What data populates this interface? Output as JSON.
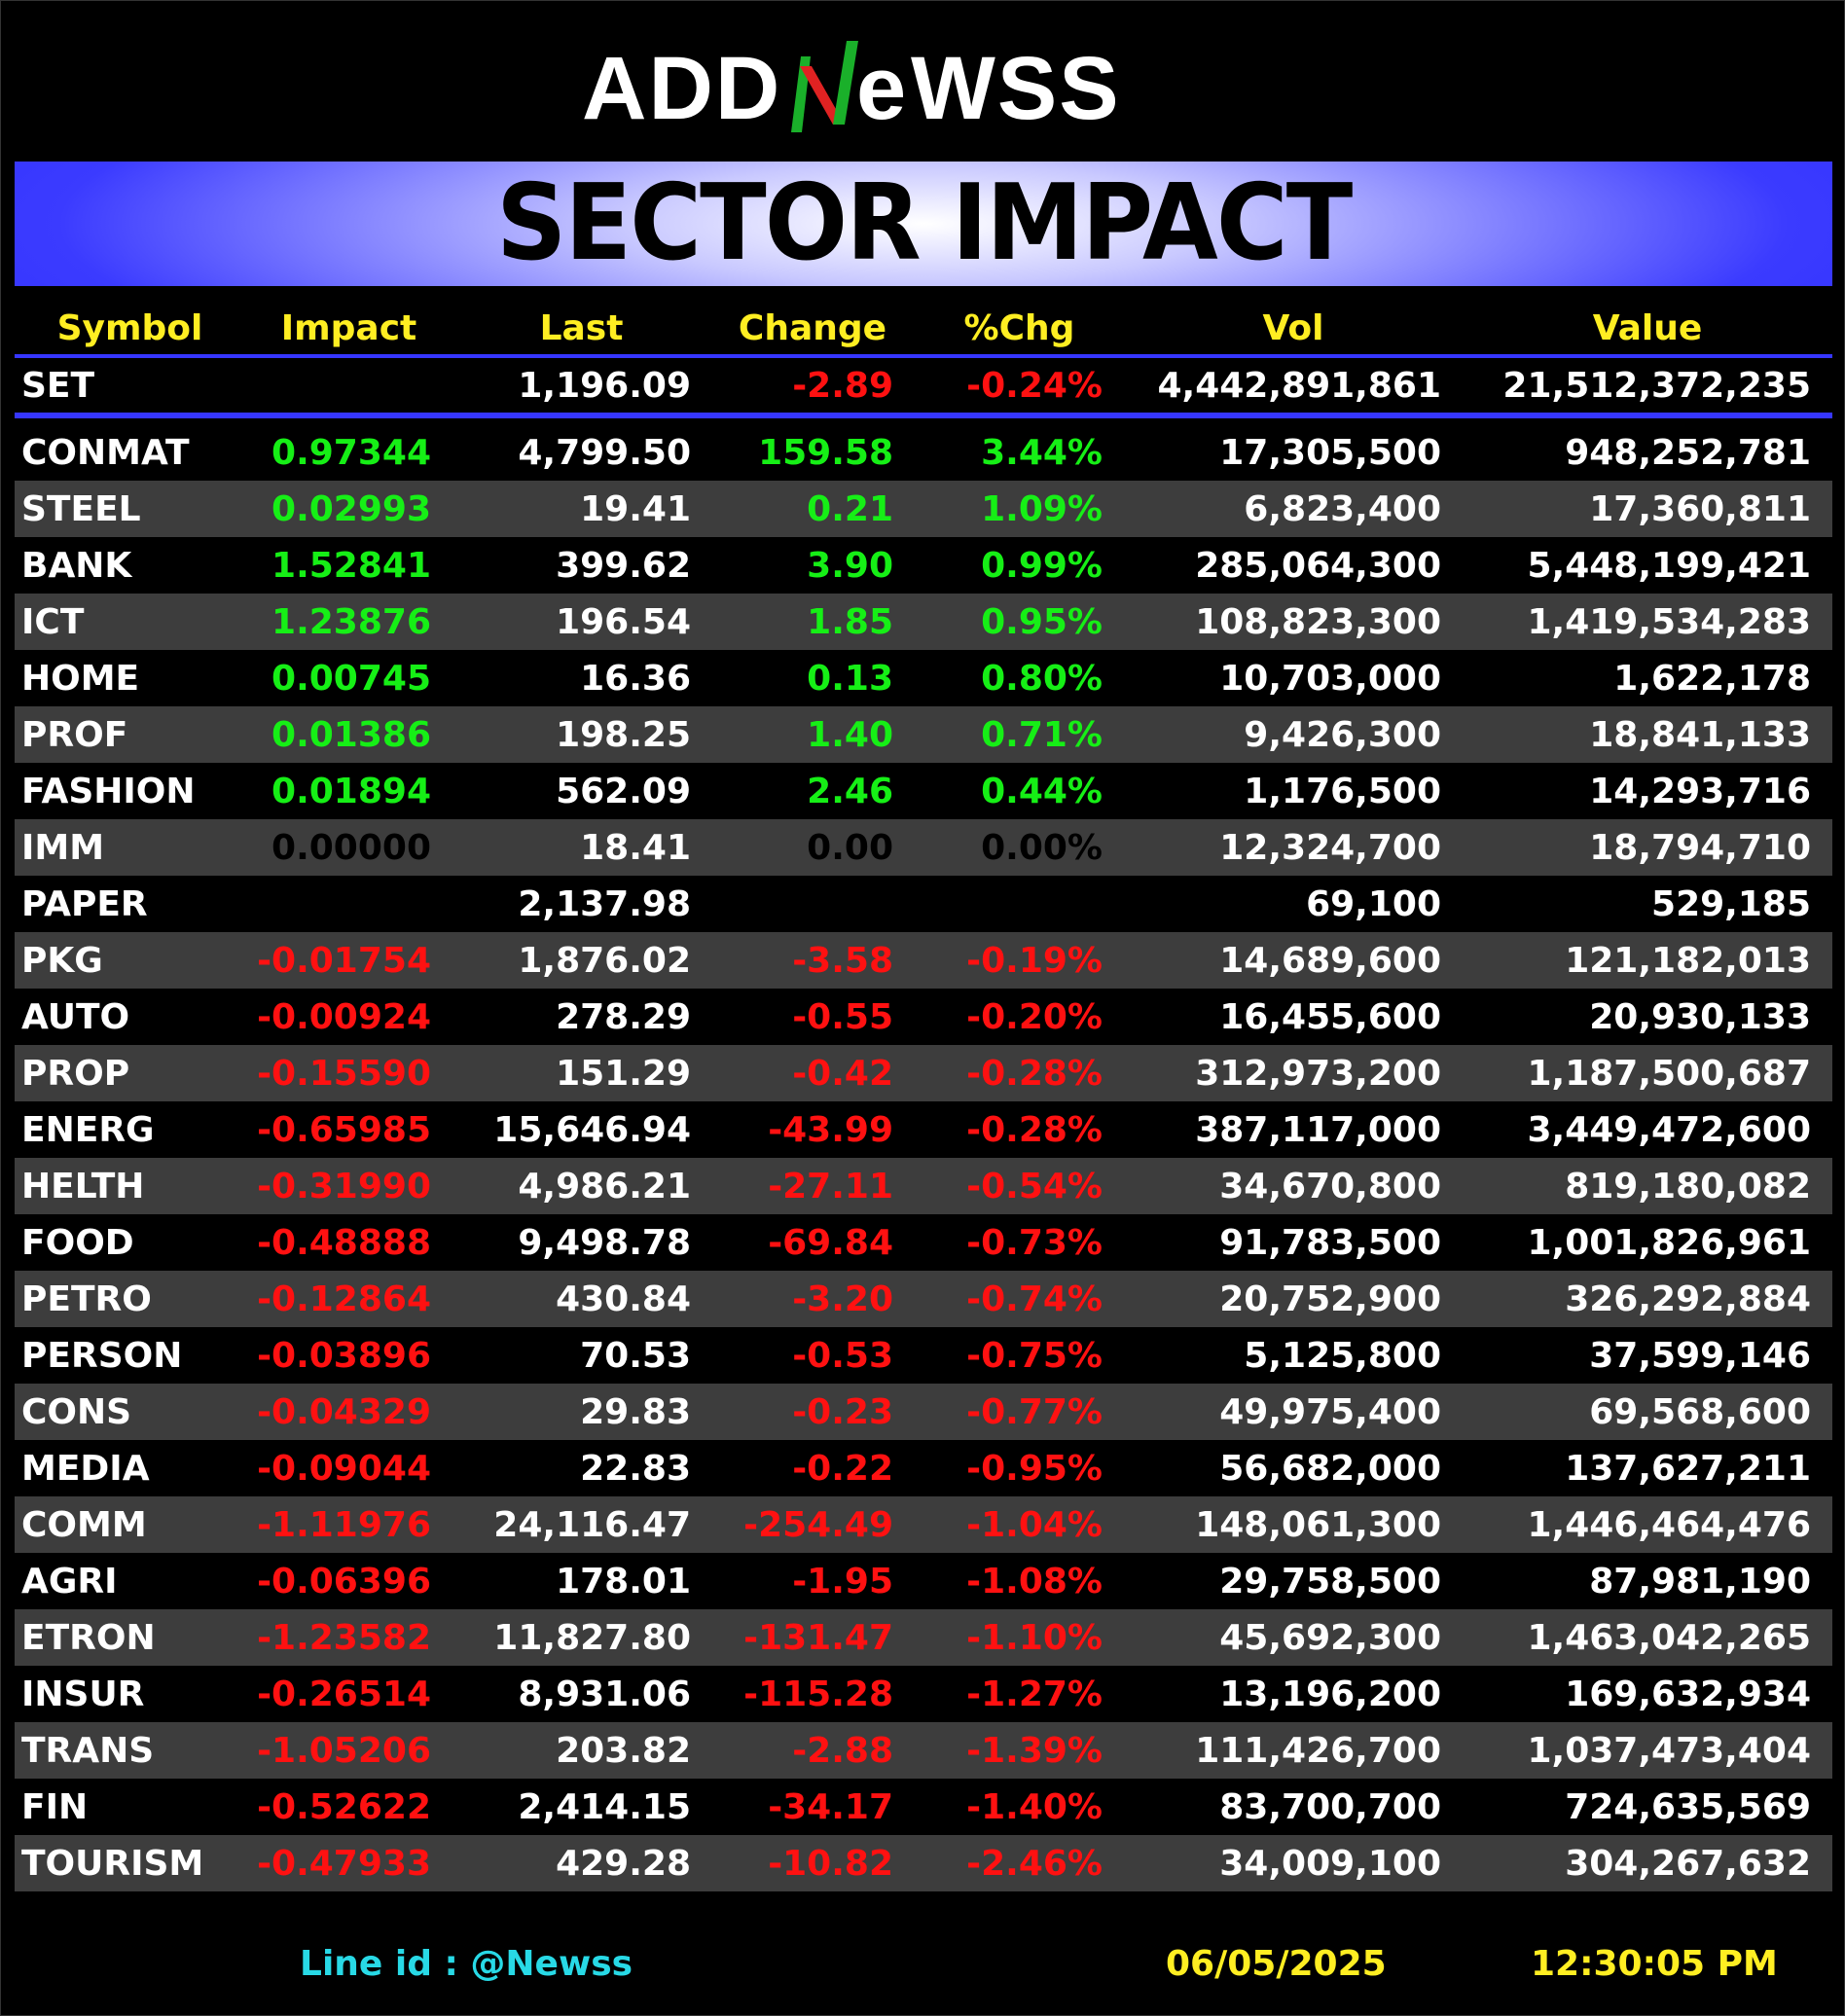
{
  "logo": {
    "text": "ADDNewss",
    "part1": "ADD",
    "part2": "e",
    "part3": "WSS"
  },
  "banner": {
    "title": "SECTOR IMPACT"
  },
  "headers": [
    "Symbol",
    "Impact",
    "Last",
    "Change",
    "%Chg",
    "Vol",
    "Value"
  ],
  "colors": {
    "positive": "#16ef16",
    "negative": "#ff1111",
    "header": "#ffee22",
    "accent": "#3636ff",
    "line_id": "#28d9e6"
  },
  "set_row": {
    "symbol": "SET",
    "impact": "",
    "last": "1,196.09",
    "change": "-2.89",
    "pct": "-0.24%",
    "vol": "4,442,891,861",
    "value": "21,512,372,235",
    "trend": "neg"
  },
  "rows": [
    {
      "symbol": "CONMAT",
      "impact": "0.97344",
      "last": "4,799.50",
      "change": "159.58",
      "pct": "3.44%",
      "vol": "17,305,500",
      "value": "948,252,781",
      "trend": "pos"
    },
    {
      "symbol": "STEEL",
      "impact": "0.02993",
      "last": "19.41",
      "change": "0.21",
      "pct": "1.09%",
      "vol": "6,823,400",
      "value": "17,360,811",
      "trend": "pos"
    },
    {
      "symbol": "BANK",
      "impact": "1.52841",
      "last": "399.62",
      "change": "3.90",
      "pct": "0.99%",
      "vol": "285,064,300",
      "value": "5,448,199,421",
      "trend": "pos"
    },
    {
      "symbol": "ICT",
      "impact": "1.23876",
      "last": "196.54",
      "change": "1.85",
      "pct": "0.95%",
      "vol": "108,823,300",
      "value": "1,419,534,283",
      "trend": "pos"
    },
    {
      "symbol": "HOME",
      "impact": "0.00745",
      "last": "16.36",
      "change": "0.13",
      "pct": "0.80%",
      "vol": "10,703,000",
      "value": "1,622,178",
      "trend": "pos"
    },
    {
      "symbol": "PROF",
      "impact": "0.01386",
      "last": "198.25",
      "change": "1.40",
      "pct": "0.71%",
      "vol": "9,426,300",
      "value": "18,841,133",
      "trend": "pos"
    },
    {
      "symbol": "FASHION",
      "impact": "0.01894",
      "last": "562.09",
      "change": "2.46",
      "pct": "0.44%",
      "vol": "1,176,500",
      "value": "14,293,716",
      "trend": "pos"
    },
    {
      "symbol": "IMM",
      "impact": "0.00000",
      "last": "18.41",
      "change": "0.00",
      "pct": "0.00%",
      "vol": "12,324,700",
      "value": "18,794,710",
      "trend": "zero"
    },
    {
      "symbol": "PAPER",
      "impact": "",
      "last": "2,137.98",
      "change": "",
      "pct": "",
      "vol": "69,100",
      "value": "529,185",
      "trend": "zero"
    },
    {
      "symbol": "PKG",
      "impact": "-0.01754",
      "last": "1,876.02",
      "change": "-3.58",
      "pct": "-0.19%",
      "vol": "14,689,600",
      "value": "121,182,013",
      "trend": "neg"
    },
    {
      "symbol": "AUTO",
      "impact": "-0.00924",
      "last": "278.29",
      "change": "-0.55",
      "pct": "-0.20%",
      "vol": "16,455,600",
      "value": "20,930,133",
      "trend": "neg"
    },
    {
      "symbol": "PROP",
      "impact": "-0.15590",
      "last": "151.29",
      "change": "-0.42",
      "pct": "-0.28%",
      "vol": "312,973,200",
      "value": "1,187,500,687",
      "trend": "neg"
    },
    {
      "symbol": "ENERG",
      "impact": "-0.65985",
      "last": "15,646.94",
      "change": "-43.99",
      "pct": "-0.28%",
      "vol": "387,117,000",
      "value": "3,449,472,600",
      "trend": "neg"
    },
    {
      "symbol": "HELTH",
      "impact": "-0.31990",
      "last": "4,986.21",
      "change": "-27.11",
      "pct": "-0.54%",
      "vol": "34,670,800",
      "value": "819,180,082",
      "trend": "neg"
    },
    {
      "symbol": "FOOD",
      "impact": "-0.48888",
      "last": "9,498.78",
      "change": "-69.84",
      "pct": "-0.73%",
      "vol": "91,783,500",
      "value": "1,001,826,961",
      "trend": "neg"
    },
    {
      "symbol": "PETRO",
      "impact": "-0.12864",
      "last": "430.84",
      "change": "-3.20",
      "pct": "-0.74%",
      "vol": "20,752,900",
      "value": "326,292,884",
      "trend": "neg"
    },
    {
      "symbol": "PERSON",
      "impact": "-0.03896",
      "last": "70.53",
      "change": "-0.53",
      "pct": "-0.75%",
      "vol": "5,125,800",
      "value": "37,599,146",
      "trend": "neg"
    },
    {
      "symbol": "CONS",
      "impact": "-0.04329",
      "last": "29.83",
      "change": "-0.23",
      "pct": "-0.77%",
      "vol": "49,975,400",
      "value": "69,568,600",
      "trend": "neg"
    },
    {
      "symbol": "MEDIA",
      "impact": "-0.09044",
      "last": "22.83",
      "change": "-0.22",
      "pct": "-0.95%",
      "vol": "56,682,000",
      "value": "137,627,211",
      "trend": "neg"
    },
    {
      "symbol": "COMM",
      "impact": "-1.11976",
      "last": "24,116.47",
      "change": "-254.49",
      "pct": "-1.04%",
      "vol": "148,061,300",
      "value": "1,446,464,476",
      "trend": "neg"
    },
    {
      "symbol": "AGRI",
      "impact": "-0.06396",
      "last": "178.01",
      "change": "-1.95",
      "pct": "-1.08%",
      "vol": "29,758,500",
      "value": "87,981,190",
      "trend": "neg"
    },
    {
      "symbol": "ETRON",
      "impact": "-1.23582",
      "last": "11,827.80",
      "change": "-131.47",
      "pct": "-1.10%",
      "vol": "45,692,300",
      "value": "1,463,042,265",
      "trend": "neg"
    },
    {
      "symbol": "INSUR",
      "impact": "-0.26514",
      "last": "8,931.06",
      "change": "-115.28",
      "pct": "-1.27%",
      "vol": "13,196,200",
      "value": "169,632,934",
      "trend": "neg"
    },
    {
      "symbol": "TRANS",
      "impact": "-1.05206",
      "last": "203.82",
      "change": "-2.88",
      "pct": "-1.39%",
      "vol": "111,426,700",
      "value": "1,037,473,404",
      "trend": "neg"
    },
    {
      "symbol": "FIN",
      "impact": "-0.52622",
      "last": "2,414.15",
      "change": "-34.17",
      "pct": "-1.40%",
      "vol": "83,700,700",
      "value": "724,635,569",
      "trend": "neg"
    },
    {
      "symbol": "TOURISM",
      "impact": "-0.47933",
      "last": "429.28",
      "change": "-10.82",
      "pct": "-2.46%",
      "vol": "34,009,100",
      "value": "304,267,632",
      "trend": "neg"
    }
  ],
  "footer": {
    "line_id": "Line id  : @Newss",
    "date": "06/05/2025",
    "time": "12:30:05 PM"
  }
}
